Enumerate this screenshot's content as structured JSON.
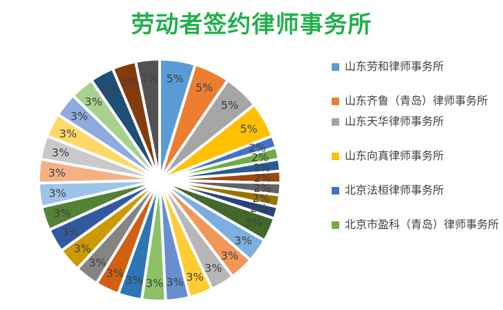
{
  "chart_data": {
    "type": "pie",
    "title": "劳动者签约律师事务所",
    "legend_position": "right",
    "legend": [
      "山东劳和律师事务所",
      "山东齐鲁（青岛）律师事务所",
      "山东天华律师事务所",
      "山东向真律师事务所",
      "北京法桓律师事务所",
      "北京市盈科（青岛）律师事务所"
    ],
    "slices": [
      {
        "label": "5%",
        "value": 4.8,
        "color": "#5B9BD5"
      },
      {
        "label": "5%",
        "value": 4.8,
        "color": "#ED7D31"
      },
      {
        "label": "5%",
        "value": 4.8,
        "color": "#A5A5A5"
      },
      {
        "label": "5%",
        "value": 4.8,
        "color": "#FFC000"
      },
      {
        "label": "2%",
        "value": 1.6,
        "color": "#4472C4"
      },
      {
        "label": "2%",
        "value": 1.6,
        "color": "#70AD47"
      },
      {
        "label": "2%",
        "value": 1.6,
        "color": "#255E91"
      },
      {
        "label": "2%",
        "value": 1.6,
        "color": "#9E480E"
      },
      {
        "label": "2%",
        "value": 1.6,
        "color": "#636363"
      },
      {
        "label": "2%",
        "value": 1.6,
        "color": "#997300"
      },
      {
        "label": "2%",
        "value": 1.6,
        "color": "#264478"
      },
      {
        "label": "3%",
        "value": 3.2,
        "color": "#43682B"
      },
      {
        "label": "3%",
        "value": 3.2,
        "color": "#7CAFDD"
      },
      {
        "label": "3%",
        "value": 3.2,
        "color": "#F1975A"
      },
      {
        "label": "3%",
        "value": 3.2,
        "color": "#B7B7B7"
      },
      {
        "label": "3%",
        "value": 3.2,
        "color": "#FFCD33"
      },
      {
        "label": "3%",
        "value": 3.2,
        "color": "#698ED0"
      },
      {
        "label": "3%",
        "value": 3.2,
        "color": "#8CC168"
      },
      {
        "label": "3%",
        "value": 3.2,
        "color": "#2E75B6"
      },
      {
        "label": "3%",
        "value": 3.2,
        "color": "#D26012"
      },
      {
        "label": "3%",
        "value": 3.2,
        "color": "#848484"
      },
      {
        "label": "3%",
        "value": 3.2,
        "color": "#CC9A00"
      },
      {
        "label": "3%",
        "value": 3.2,
        "color": "#335AA1"
      },
      {
        "label": "3%",
        "value": 3.2,
        "color": "#548235"
      },
      {
        "label": "3%",
        "value": 3.2,
        "color": "#9DC3E6"
      },
      {
        "label": "3%",
        "value": 3.2,
        "color": "#F4B183"
      },
      {
        "label": "3%",
        "value": 3.2,
        "color": "#C9C9C9"
      },
      {
        "label": "3%",
        "value": 3.2,
        "color": "#FFD966"
      },
      {
        "label": "3%",
        "value": 3.2,
        "color": "#8FAADC"
      },
      {
        "label": "3%",
        "value": 3.2,
        "color": "#A9D18E"
      },
      {
        "label": "3%",
        "value": 3.2,
        "color": "#1F4E79"
      },
      {
        "label": "3%",
        "value": 3.2,
        "color": "#843C0C"
      },
      {
        "label": "3%",
        "value": 3.2,
        "color": "#525252"
      }
    ]
  }
}
